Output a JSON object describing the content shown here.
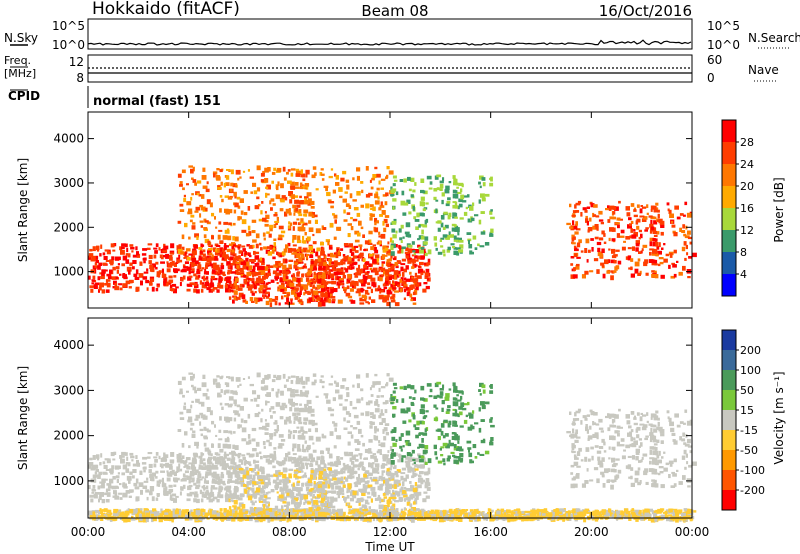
{
  "header": {
    "station": "Hokkaido (fitACF)",
    "beam": "Beam 08",
    "date": "16/Oct/2016"
  },
  "strip_nsky": {
    "label": "N.Sky",
    "tick_top": "10^5",
    "tick_bottom": "10^0",
    "tick_top_right": "10^5",
    "tick_bottom_right": "10^0",
    "right_label": "N.Search"
  },
  "strip_freq": {
    "label_line1": "Freq.",
    "label_line2": "[MHz]",
    "tick_12": "12",
    "tick_8": "8",
    "tick_60": "60",
    "tick_0": "0",
    "right_label": "Nave"
  },
  "strip_cpid": {
    "label": "CPID",
    "text": "normal (fast) 151"
  },
  "panels": {
    "power": {
      "ylabel": "Slant Range [km]",
      "cbar_label": "Power [dB]",
      "cbar_ticks": [
        "28",
        "24",
        "20",
        "16",
        "12",
        "8",
        "4"
      ],
      "cbar_colors": [
        "#ff0000",
        "#ff3d00",
        "#ff7700",
        "#ffaa00",
        "#a8d83a",
        "#3a9a6a",
        "#1a5aa8",
        "#0000ff"
      ]
    },
    "velocity": {
      "ylabel": "Slant Range [km]",
      "cbar_label": "Velocity [m s⁻¹]",
      "cbar_ticks": [
        "200",
        "100",
        "50",
        "15",
        "-15",
        "-50",
        "-100",
        "-200"
      ],
      "cbar_colors": [
        "#1a3aa0",
        "#3a6a9a",
        "#4a9a5a",
        "#7ac83a",
        "#c8c8c0",
        "#ffcc33",
        "#ff9900",
        "#ff5500",
        "#ff0000"
      ]
    }
  },
  "xaxis": {
    "label": "Time UT",
    "ticks": [
      "00:00",
      "04:00",
      "08:00",
      "12:00",
      "16:00",
      "20:00",
      "00:00"
    ]
  },
  "chart_data": {
    "type": "heatmap",
    "title": "Hokkaido (fitACF) Beam 08 16/Oct/2016",
    "xlabel": "Time UT",
    "ylabel": "Slant Range [km]",
    "xlim": [
      "00:00",
      "24:00"
    ],
    "ylim": [
      180,
      4600
    ],
    "yticks": [
      1000,
      2000,
      3000,
      4000
    ],
    "frequency_mhz": 10.5,
    "scatter_regions": [
      {
        "name": "near-range band",
        "t_start": 0,
        "t_end": 24,
        "r_min": 180,
        "r_max": 400,
        "velocity_ms": -20
      },
      {
        "name": "low band",
        "t_start": 0,
        "t_end": 13.5,
        "r_min": 600,
        "r_max": 1650,
        "power_db": 28,
        "velocity_ms": 0
      },
      {
        "name": "descending trace",
        "t_start": 5.5,
        "t_end": 13,
        "r_min": 300,
        "r_max": 1300,
        "power_db": 26,
        "velocity_ms": -10
      },
      {
        "name": "ascending trace",
        "t_start": 3.5,
        "t_end": 12,
        "r_min": 1300,
        "r_max": 3400,
        "power_db": 22,
        "velocity_ms": 0
      },
      {
        "name": "mid-day patches",
        "t_start": 12,
        "t_end": 16,
        "r_min": 1400,
        "r_max": 3200,
        "power_db": 12,
        "velocity_ms": 60
      },
      {
        "name": "evening band",
        "t_start": 19,
        "t_end": 24,
        "r_min": 900,
        "r_max": 2600,
        "power_db": 26,
        "velocity_ms": 0
      }
    ]
  }
}
